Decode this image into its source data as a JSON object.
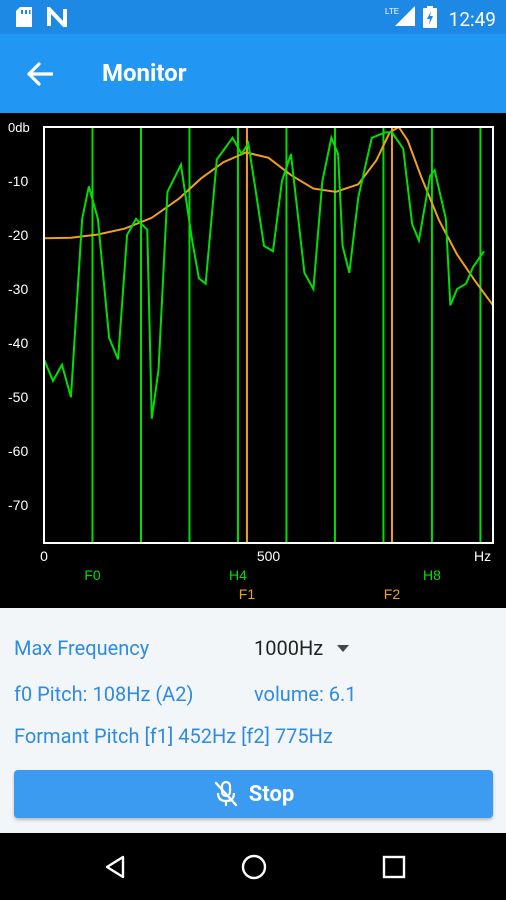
{
  "status_bar": {
    "time": "12:49",
    "network_label": "LTE",
    "icons": [
      "sd-card-icon",
      "notification-n-icon",
      "signal-icon",
      "battery-icon"
    ]
  },
  "app_bar": {
    "title": "Monitor",
    "back_icon": "arrow-left-icon"
  },
  "chart_data": {
    "type": "line",
    "y_ticks": [
      "0db",
      "-10",
      "-20",
      "-30",
      "-40",
      "-50",
      "-60",
      "-70"
    ],
    "x_ticks": [
      "0",
      "500",
      "Hz"
    ],
    "ylim": [
      -77,
      0
    ],
    "xlim": [
      0,
      1000
    ],
    "harmonic_labels": [
      {
        "label": "F0",
        "x": 108,
        "color": "#00E000"
      },
      {
        "label": "H4",
        "x": 432,
        "color": "#00E000"
      },
      {
        "label": "H8",
        "x": 864,
        "color": "#00E000"
      }
    ],
    "formant_labels": [
      {
        "label": "F1",
        "x": 452,
        "color": "#F0A020"
      },
      {
        "label": "F2",
        "x": 775,
        "color": "#F0A020"
      }
    ],
    "harmonic_lines": [
      108,
      216,
      324,
      432,
      540,
      648,
      756,
      864,
      972
    ],
    "formant_lines": [
      452,
      775
    ],
    "series": [
      {
        "name": "spectrum",
        "color": "#00E000",
        "points": [
          [
            0,
            -43
          ],
          [
            20,
            -47
          ],
          [
            40,
            -44
          ],
          [
            60,
            -50
          ],
          [
            85,
            -17
          ],
          [
            100,
            -11
          ],
          [
            120,
            -17
          ],
          [
            145,
            -39
          ],
          [
            165,
            -43
          ],
          [
            185,
            -20
          ],
          [
            205,
            -17
          ],
          [
            230,
            -19
          ],
          [
            240,
            -54
          ],
          [
            255,
            -45
          ],
          [
            275,
            -12
          ],
          [
            305,
            -7
          ],
          [
            330,
            -21
          ],
          [
            345,
            -28
          ],
          [
            360,
            -29
          ],
          [
            385,
            -6
          ],
          [
            420,
            -2
          ],
          [
            440,
            -5
          ],
          [
            455,
            -3
          ],
          [
            470,
            -11
          ],
          [
            490,
            -22
          ],
          [
            510,
            -23
          ],
          [
            530,
            -10
          ],
          [
            550,
            -5
          ],
          [
            580,
            -27
          ],
          [
            600,
            -30
          ],
          [
            620,
            -10
          ],
          [
            640,
            -2
          ],
          [
            655,
            -5
          ],
          [
            665,
            -22
          ],
          [
            680,
            -27
          ],
          [
            700,
            -13
          ],
          [
            730,
            -2
          ],
          [
            760,
            -1
          ],
          [
            775,
            -1
          ],
          [
            800,
            -4
          ],
          [
            820,
            -18
          ],
          [
            835,
            -21
          ],
          [
            860,
            -9
          ],
          [
            870,
            -8
          ],
          [
            895,
            -17
          ],
          [
            905,
            -33
          ],
          [
            920,
            -30
          ],
          [
            940,
            -29
          ],
          [
            955,
            -26
          ],
          [
            980,
            -23
          ]
        ]
      },
      {
        "name": "formant-envelope",
        "color": "#F0A020",
        "points": [
          [
            0,
            -20.6
          ],
          [
            60,
            -20.5
          ],
          [
            120,
            -19.9
          ],
          [
            180,
            -18.8
          ],
          [
            240,
            -16.8
          ],
          [
            300,
            -13.3
          ],
          [
            350,
            -9.5
          ],
          [
            400,
            -6.5
          ],
          [
            450,
            -4.7
          ],
          [
            500,
            -5.7
          ],
          [
            550,
            -8.9
          ],
          [
            600,
            -11.4
          ],
          [
            650,
            -12.0
          ],
          [
            700,
            -10.6
          ],
          [
            740,
            -6.2
          ],
          [
            770,
            -1.0
          ],
          [
            790,
            0
          ],
          [
            810,
            -2.5
          ],
          [
            840,
            -9.2
          ],
          [
            880,
            -17.3
          ],
          [
            920,
            -23.6
          ],
          [
            960,
            -28.5
          ],
          [
            1000,
            -33
          ]
        ]
      }
    ]
  },
  "info": {
    "max_freq_label": "Max Frequency",
    "max_freq_value": "1000Hz",
    "f0_text": "f0 Pitch: 108Hz (A2)",
    "volume_text": "volume: 6.1",
    "formant_text": "Formant Pitch  [f1] 452Hz  [f2] 775Hz"
  },
  "stop_button": {
    "label": "Stop",
    "icon": "mic-off-icon"
  },
  "nav": {
    "icons": [
      "back-triangle-icon",
      "home-circle-icon",
      "recents-square-icon"
    ]
  }
}
